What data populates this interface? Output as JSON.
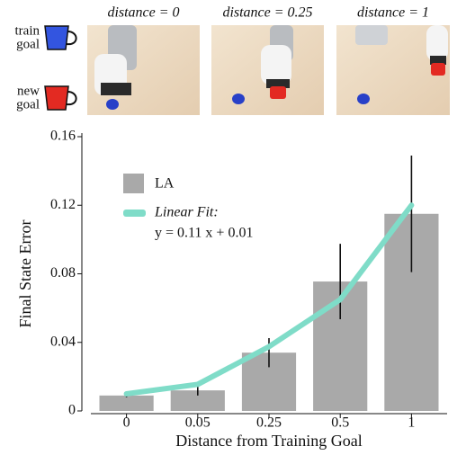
{
  "panels": [
    {
      "title": "distance = 0"
    },
    {
      "title": "distance = 0.25"
    },
    {
      "title": "distance = 1"
    }
  ],
  "goal_labels": [
    {
      "lines": [
        "train",
        "goal"
      ],
      "color": "#3355e0"
    },
    {
      "lines": [
        "new",
        "goal"
      ],
      "color": "#e32a22"
    }
  ],
  "chart_data": {
    "type": "bar",
    "categories": [
      "0",
      "0.05",
      "0.25",
      "0.5",
      "1"
    ],
    "series": [
      {
        "name": "LA",
        "color": "#a9a9a9",
        "values": [
          0.009,
          0.012,
          0.034,
          0.0755,
          0.115
        ],
        "errors": [
          0.001,
          0.003,
          0.0085,
          0.022,
          0.034
        ]
      },
      {
        "name": "Linear Fit:",
        "type": "line",
        "color": "#7fdcc8",
        "values": [
          0.01,
          0.0155,
          0.0375,
          0.065,
          0.12
        ]
      }
    ],
    "fit_equation": "y = 0.11 x + 0.01",
    "ylabel": "Final State Error",
    "xlabel": "Distance from Training Goal",
    "ylim": [
      0,
      0.16
    ],
    "yticks": [
      0,
      0.04,
      0.08,
      0.12,
      0.16
    ]
  }
}
